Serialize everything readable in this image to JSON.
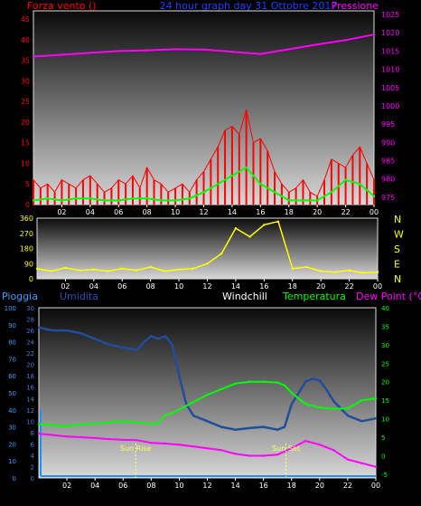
{
  "header": {
    "left_label": "Forza vento ()",
    "center_label": "24 hour graph day  31 Ottobre 2017",
    "right_label": "Pressione"
  },
  "colors": {
    "wind": "#ff0000",
    "wind_avg": "#00ff00",
    "pressure": "#ff00ff",
    "direction": "#ffff00",
    "rain_axis": "#1e90ff",
    "humidity": "#1f4e9a",
    "temperature": "#00ff00",
    "dewpoint": "#ff00ff",
    "windchill": "#ffffff"
  },
  "chart_data": [
    {
      "type": "line",
      "x_ticks": [
        "02",
        "04",
        "06",
        "08",
        "10",
        "12",
        "14",
        "16",
        "18",
        "20",
        "22",
        "00"
      ],
      "left_axis": {
        "ticks": [
          "45",
          "40",
          "35",
          "30",
          "25",
          "20",
          "15",
          "10",
          "5",
          "0"
        ],
        "ylim": [
          0,
          47
        ]
      },
      "right_axis": {
        "ticks": [
          "1025",
          "1020",
          "1015",
          "1010",
          "1005",
          "1000",
          "995",
          "990",
          "985",
          "980",
          "975"
        ],
        "ylim": [
          973,
          1026
        ]
      },
      "series": [
        {
          "name": "Forza vento",
          "axis": "left",
          "x": [
            0,
            0.5,
            1,
            1.5,
            2,
            2.5,
            3,
            3.5,
            4,
            4.5,
            5,
            5.5,
            6,
            6.5,
            7,
            7.5,
            8,
            8.5,
            9,
            9.5,
            10,
            10.5,
            11,
            11.5,
            12,
            12.5,
            13,
            13.5,
            14,
            14.5,
            15,
            15.5,
            16,
            16.5,
            17,
            17.5,
            18,
            18.5,
            19,
            19.5,
            20,
            20.5,
            21,
            21.5,
            22,
            22.5,
            23,
            23.5,
            24
          ],
          "values": [
            6,
            4,
            5,
            3,
            6,
            5,
            4,
            6,
            7,
            5,
            3,
            4,
            6,
            5,
            7,
            4,
            9,
            6,
            5,
            3,
            4,
            5,
            3,
            6,
            8,
            11,
            14,
            18,
            19,
            17,
            23,
            15,
            16,
            13,
            8,
            5,
            3,
            4,
            6,
            3,
            2,
            6,
            11,
            10,
            9,
            12,
            14,
            10,
            6
          ]
        },
        {
          "name": "Vento medio",
          "axis": "left",
          "x": [
            0,
            1,
            2,
            3,
            4,
            5,
            6,
            7,
            8,
            9,
            10,
            11,
            12,
            13,
            14,
            15,
            16,
            17,
            18,
            19,
            20,
            21,
            22,
            23,
            24
          ],
          "values": [
            1,
            1.5,
            1,
            1.5,
            1.5,
            1,
            1,
            1.5,
            1.5,
            1,
            1,
            1.5,
            3,
            5,
            7,
            9,
            5,
            3,
            1,
            1,
            1,
            3,
            6,
            5,
            2
          ]
        },
        {
          "name": "Pressione",
          "axis": "right",
          "x": [
            0,
            2,
            4,
            6,
            8,
            10,
            12,
            14,
            16,
            18,
            20,
            22,
            24
          ],
          "values": [
            1013.5,
            1014,
            1014.5,
            1015,
            1015.2,
            1015.5,
            1015.4,
            1014.8,
            1014.2,
            1015.5,
            1016.8,
            1018,
            1019.5
          ]
        }
      ]
    },
    {
      "type": "line",
      "x_ticks": [
        "02",
        "04",
        "06",
        "08",
        "10",
        "12",
        "14",
        "16",
        "18",
        "20",
        "22",
        "00"
      ],
      "left_axis": {
        "ticks": [
          "360",
          "270",
          "180",
          "90",
          "0"
        ],
        "ylim": [
          0,
          360
        ]
      },
      "right_axis": {
        "ticks": [
          "N",
          "W",
          "S",
          "E",
          "N"
        ]
      },
      "series": [
        {
          "name": "Direzione vento",
          "x": [
            0,
            1,
            2,
            3,
            4,
            5,
            6,
            7,
            8,
            9,
            10,
            11,
            12,
            13,
            14,
            15,
            16,
            17,
            18,
            19,
            20,
            21,
            22,
            23,
            24
          ],
          "values": [
            60,
            45,
            65,
            50,
            55,
            45,
            60,
            50,
            70,
            45,
            55,
            60,
            90,
            150,
            300,
            250,
            320,
            340,
            60,
            70,
            45,
            40,
            50,
            35,
            40
          ]
        }
      ]
    },
    {
      "type": "line",
      "x_ticks": [
        "02",
        "04",
        "06",
        "08",
        "10",
        "12",
        "14",
        "16",
        "18",
        "20",
        "22",
        "00"
      ],
      "labels": [
        "Pioggia",
        "Umidita",
        "Windchill",
        "Temperatura",
        "Dew Point (°C)"
      ],
      "rain_axis": {
        "ticks": [
          "100",
          "90",
          "80",
          "70",
          "60",
          "50",
          "40",
          "30",
          "20",
          "10",
          "0"
        ],
        "ylim": [
          0,
          100
        ]
      },
      "humidity_axis": {
        "ticks": [
          "30",
          "28",
          "26",
          "24",
          "22",
          "20",
          "18",
          "16",
          "14",
          "12",
          "10",
          "8",
          "6",
          "4",
          "2",
          "0"
        ],
        "ylim": [
          0,
          30
        ]
      },
      "temp_axis": {
        "ticks": [
          "40",
          "35",
          "30",
          "25",
          "20",
          "15",
          "10",
          "5",
          "0",
          "-5"
        ],
        "ylim": [
          -6,
          40
        ]
      },
      "annotations": [
        {
          "text": "Sun Rise",
          "x": 6.9
        },
        {
          "text": "Sun Set",
          "x": 17.6
        }
      ],
      "series": [
        {
          "name": "Umidita",
          "axis": "humidity",
          "x": [
            0,
            1,
            2,
            3,
            4,
            5,
            6,
            7,
            7.5,
            8,
            8.5,
            9,
            9.5,
            10,
            10.5,
            11,
            12,
            13,
            14,
            15,
            16,
            17,
            17.5,
            18,
            19,
            19.5,
            20,
            20.5,
            21,
            22,
            23,
            24
          ],
          "values": [
            26.5,
            26,
            26,
            25.5,
            24.5,
            23.5,
            23,
            22.5,
            24,
            25,
            24.5,
            25,
            23.5,
            18,
            13,
            11,
            10,
            9,
            8.5,
            8.8,
            9,
            8.5,
            9,
            13,
            17,
            17.5,
            17.2,
            15.5,
            13.5,
            11,
            10,
            10.5
          ]
        },
        {
          "name": "Temperatura",
          "axis": "temp",
          "x": [
            0,
            1,
            2,
            3,
            4,
            5,
            6,
            7,
            8,
            8.5,
            9,
            9.5,
            10,
            11,
            12,
            13,
            14,
            15,
            16,
            17,
            17.5,
            18,
            19,
            20,
            21,
            22,
            23,
            24
          ],
          "values": [
            8.5,
            8.3,
            8,
            8.5,
            8.7,
            9,
            9.3,
            9,
            8.6,
            8.8,
            11,
            11.5,
            12.5,
            14.5,
            16.5,
            18,
            19.5,
            20,
            20,
            19.8,
            19,
            17,
            14,
            13,
            12.7,
            12.8,
            15,
            15.5
          ]
        },
        {
          "name": "Dew Point",
          "axis": "temp",
          "x": [
            0,
            1,
            2,
            3,
            4,
            5,
            6,
            7,
            8,
            9,
            10,
            11,
            12,
            13,
            14,
            15,
            16,
            17,
            18,
            19,
            20,
            21,
            22,
            23,
            24
          ],
          "values": [
            6,
            5.6,
            5.2,
            5,
            4.8,
            4.5,
            4.3,
            4.2,
            3.5,
            3.3,
            3,
            2.5,
            2,
            1.5,
            0.5,
            0,
            0,
            0.3,
            2,
            4,
            3,
            1.5,
            -1,
            -2,
            -3
          ]
        }
      ]
    }
  ]
}
